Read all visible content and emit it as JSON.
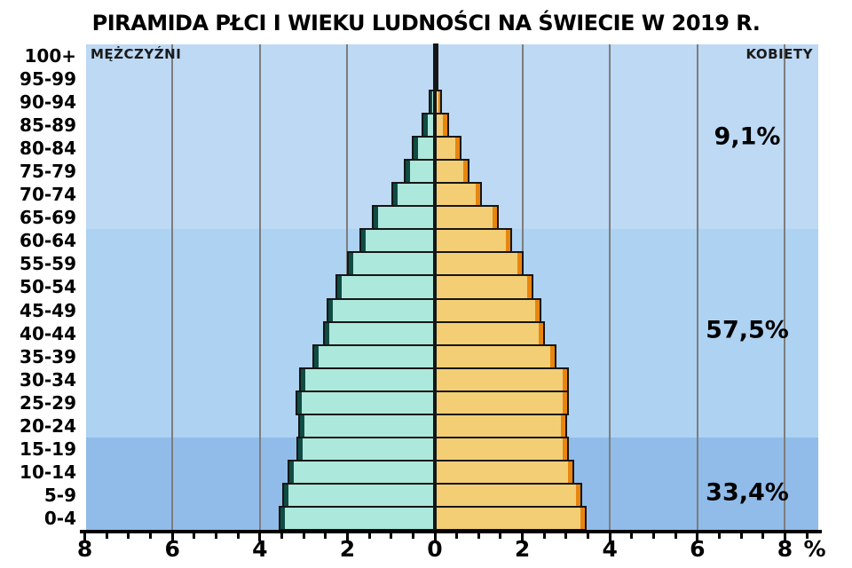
{
  "title": "PIRAMIDA PŁCI I WIEKU LUDNOŚCI NA ŚWIECIE W 2019 R.",
  "legend": {
    "left": "MĘŻCZYŹNI",
    "right": "KOBIETY"
  },
  "x_axis": {
    "unit": "%",
    "tick_labels": [
      "8",
      "6",
      "4",
      "2",
      "0",
      "2",
      "4",
      "6",
      "8"
    ],
    "tick_values": [
      -8,
      -6,
      -4,
      -2,
      0,
      2,
      4,
      6,
      8
    ],
    "minor_step": 0.5,
    "max_each_side": 8,
    "gridline_values": [
      -6,
      -4,
      -2,
      0,
      2,
      4,
      6,
      8
    ]
  },
  "age_bands": [
    {
      "ages": "65-plus",
      "share_label": "9,1%",
      "from_row": 0,
      "to_row": 7,
      "color": "#bdd9f4"
    },
    {
      "ages": "20-64",
      "share_label": "57,5%",
      "from_row": 8,
      "to_row": 16,
      "color": "#aed2f1"
    },
    {
      "ages": "0-19",
      "share_label": "33,4%",
      "from_row": 17,
      "to_row": 20,
      "color": "#91bce9"
    }
  ],
  "chart_data": {
    "type": "bar",
    "subtype": "population-pyramid",
    "title": "PIRAMIDA PŁCI I WIEKU LUDNOŚCI NA ŚWIECIE W 2019 R.",
    "x_unit": "%",
    "xlim_each_side": [
      0,
      8
    ],
    "grid": true,
    "categories_top_to_bottom": [
      "100+",
      "95-99",
      "90-94",
      "85-89",
      "80-84",
      "75-79",
      "70-74",
      "65-69",
      "60-64",
      "55-59",
      "50-54",
      "45-49",
      "40-44",
      "35-39",
      "30-34",
      "25-29",
      "20-24",
      "15-19",
      "10-14",
      "5-9",
      "0-4"
    ],
    "series": [
      {
        "name": "MĘŻCZYŹNI",
        "side": "left",
        "values": [
          0.02,
          0.05,
          0.14,
          0.3,
          0.52,
          0.72,
          1.0,
          1.44,
          1.72,
          2.0,
          2.28,
          2.48,
          2.56,
          2.8,
          3.1,
          3.18,
          3.12,
          3.16,
          3.36,
          3.48,
          3.58
        ]
      },
      {
        "name": "KOBIETY",
        "side": "right",
        "values": [
          0.02,
          0.06,
          0.16,
          0.32,
          0.6,
          0.8,
          1.08,
          1.46,
          1.76,
          2.02,
          2.26,
          2.44,
          2.52,
          2.78,
          3.06,
          3.06,
          3.02,
          3.06,
          3.18,
          3.36,
          3.46
        ]
      }
    ],
    "annotations": [
      {
        "text": "9,1%",
        "meaning": "udział ludności 65+"
      },
      {
        "text": "57,5%",
        "meaning": "udział ludności 20-64"
      },
      {
        "text": "33,4%",
        "meaning": "udział ludności 0-19"
      }
    ]
  },
  "colors": {
    "male_fill": "#ace8db",
    "male_edge": "#0f4c43",
    "female_fill": "#f3ce74",
    "female_edge": "#e8850f",
    "bar_outline": "#161616",
    "gridline": "#7d7d7d",
    "band_65plus": "#bdd9f4",
    "band_20_64": "#aed2f1",
    "band_0_19": "#91bce9",
    "axis": "#000000",
    "background": "#ffffff"
  }
}
